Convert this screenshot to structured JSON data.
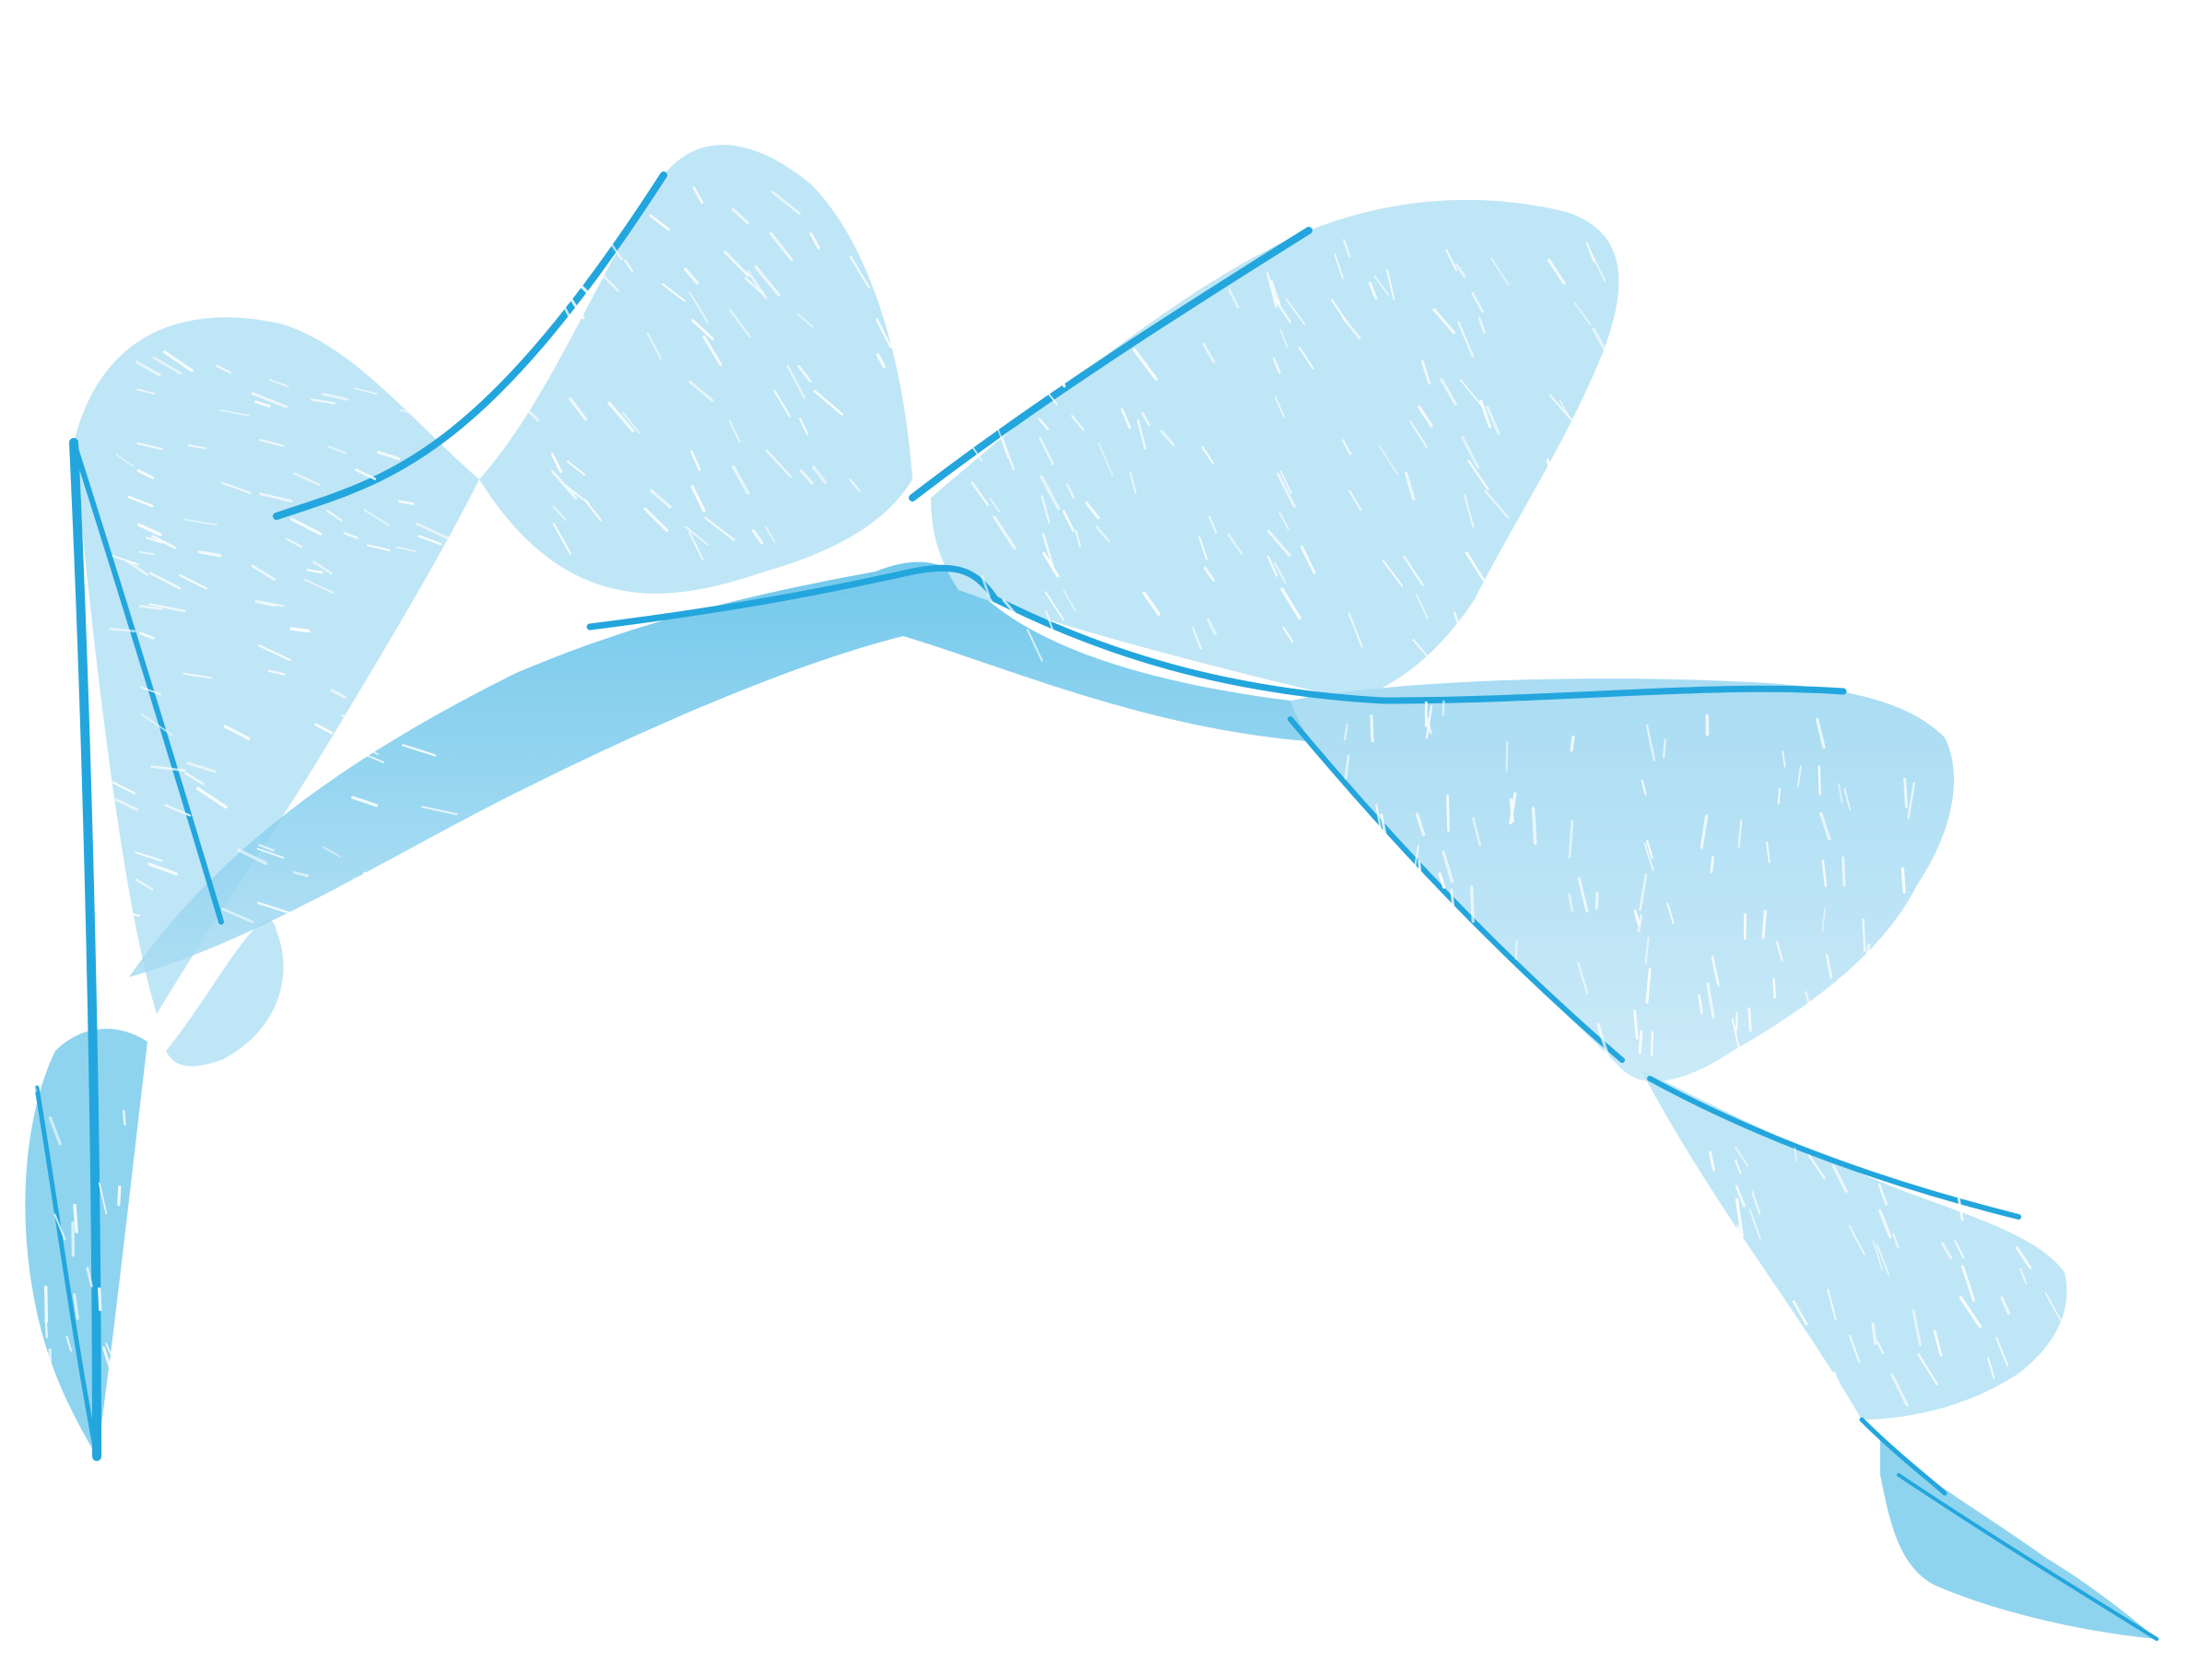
{
  "artwork": {
    "subject": "abstract-wave-ribbon",
    "colors": {
      "background": "#ffffff",
      "edge": "#23a6dd",
      "deep": "#5bbfe8",
      "mid": "#8fd4ef",
      "light": "#bfe6f6",
      "hatch": "#ffffff"
    }
  }
}
